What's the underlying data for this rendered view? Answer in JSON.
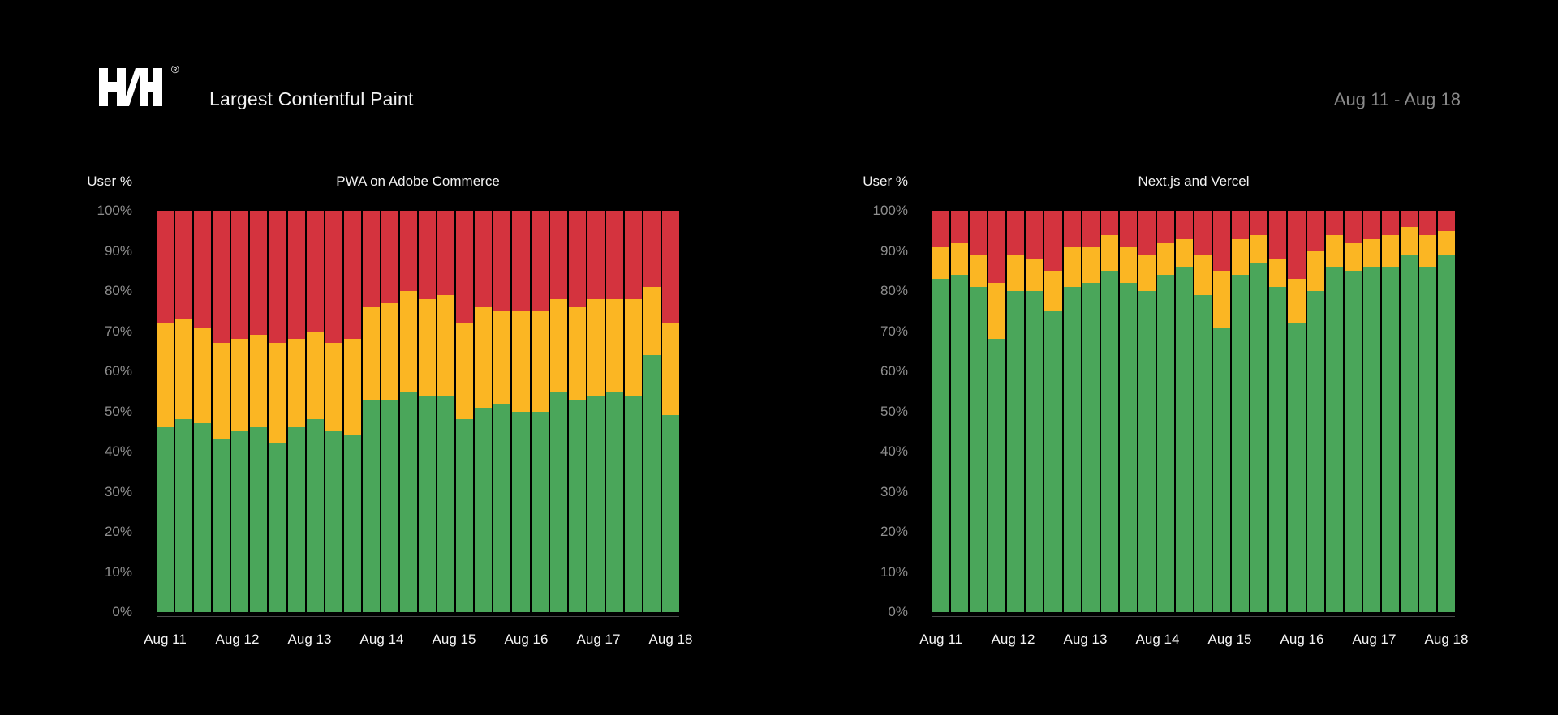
{
  "header": {
    "logo_text": "H/H",
    "registered_mark": "®",
    "title": "Largest Contentful Paint",
    "date_range": "Aug 11 - Aug 18"
  },
  "colors": {
    "background": "#000000",
    "good": "#4AA65A",
    "needs_improvement": "#FBB623",
    "poor": "#D4333E",
    "tick_label": "#8F8F8F",
    "date_text": "#8A8A8A",
    "divider": "#2C2C2C",
    "axis_line": "#4A4A4A",
    "title_text": "#F2F2F2"
  },
  "y_axis": {
    "label": "User %",
    "ticks": [
      "100%",
      "90%",
      "80%",
      "70%",
      "60%",
      "50%",
      "40%",
      "30%",
      "20%",
      "10%",
      "0%"
    ]
  },
  "x_axis": {
    "labels": [
      "Aug 11",
      "Aug 12",
      "Aug 13",
      "Aug 14",
      "Aug 15",
      "Aug 16",
      "Aug 17",
      "Aug 18"
    ]
  },
  "chart_data": [
    {
      "type": "bar",
      "stacked": true,
      "title": "PWA on Adobe Commerce",
      "ylabel": "User %",
      "ylim": [
        0,
        100
      ],
      "unit": "percent",
      "grid": false,
      "legend": "none",
      "bars_per_day": 4,
      "x_labels": [
        "Aug 11",
        "Aug 12",
        "Aug 13",
        "Aug 14",
        "Aug 15",
        "Aug 16",
        "Aug 17",
        "Aug 18"
      ],
      "series": [
        {
          "name": "good",
          "color": "#4AA65A",
          "values": [
            46,
            48,
            47,
            43,
            45,
            46,
            42,
            46,
            48,
            45,
            44,
            53,
            53,
            55,
            54,
            54,
            48,
            51,
            52,
            50,
            50,
            55,
            53,
            54,
            55,
            54,
            64,
            49
          ]
        },
        {
          "name": "needs_improvement",
          "color": "#FBB623",
          "values": [
            26,
            25,
            24,
            24,
            23,
            23,
            25,
            22,
            22,
            22,
            24,
            23,
            24,
            25,
            24,
            25,
            24,
            25,
            23,
            25,
            25,
            23,
            23,
            24,
            23,
            24,
            17,
            23
          ]
        },
        {
          "name": "poor",
          "color": "#D4333E",
          "values": [
            28,
            27,
            29,
            33,
            32,
            31,
            33,
            32,
            30,
            33,
            32,
            24,
            23,
            20,
            22,
            21,
            28,
            24,
            25,
            25,
            25,
            22,
            24,
            22,
            22,
            22,
            19,
            28
          ]
        }
      ]
    },
    {
      "type": "bar",
      "stacked": true,
      "title": "Next.js and Vercel",
      "ylabel": "User %",
      "ylim": [
        0,
        100
      ],
      "unit": "percent",
      "grid": false,
      "legend": "none",
      "bars_per_day": 4,
      "x_labels": [
        "Aug 11",
        "Aug 12",
        "Aug 13",
        "Aug 14",
        "Aug 15",
        "Aug 16",
        "Aug 17",
        "Aug 18"
      ],
      "series": [
        {
          "name": "good",
          "color": "#4AA65A",
          "values": [
            83,
            84,
            81,
            68,
            80,
            80,
            75,
            81,
            82,
            85,
            82,
            80,
            84,
            86,
            79,
            71,
            84,
            87,
            81,
            72,
            80,
            86,
            85,
            86,
            86,
            89,
            86,
            89
          ]
        },
        {
          "name": "needs_improvement",
          "color": "#FBB623",
          "values": [
            8,
            8,
            8,
            14,
            9,
            8,
            10,
            10,
            9,
            9,
            9,
            9,
            8,
            7,
            10,
            14,
            9,
            7,
            7,
            11,
            10,
            8,
            7,
            7,
            8,
            7,
            8,
            6
          ]
        },
        {
          "name": "poor",
          "color": "#D4333E",
          "values": [
            9,
            8,
            11,
            18,
            11,
            12,
            15,
            9,
            9,
            6,
            9,
            11,
            8,
            7,
            11,
            15,
            7,
            6,
            12,
            17,
            10,
            6,
            8,
            7,
            6,
            4,
            6,
            5
          ]
        }
      ]
    }
  ]
}
